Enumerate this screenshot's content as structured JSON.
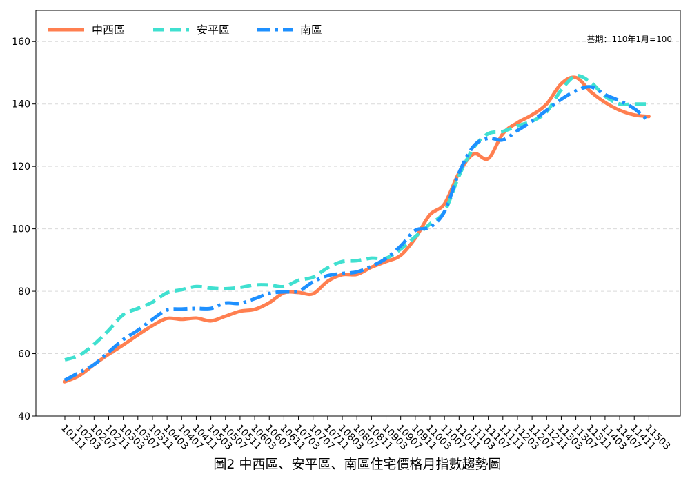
{
  "chart_data": {
    "type": "line",
    "title": "圖2  中西區、安平區、南區住宅價格月指數趨勢圖",
    "note": "基期：110年1月=100",
    "xlabel": "",
    "ylabel": "",
    "ylim": [
      40,
      170
    ],
    "yticks": [
      40,
      60,
      80,
      100,
      120,
      140,
      160
    ],
    "grid": "y-dashed",
    "legend": "top-left",
    "x_tick_labels": [
      "10111",
      "10203",
      "10207",
      "10211",
      "10303",
      "10307",
      "10311",
      "10403",
      "10407",
      "10411",
      "10503",
      "10507",
      "10511",
      "10603",
      "10607",
      "10611",
      "10703",
      "10707",
      "10711",
      "10803",
      "10807",
      "10811",
      "10903",
      "10907",
      "10911",
      "11003",
      "11007",
      "11011",
      "11103",
      "11107",
      "11111",
      "11203",
      "11207",
      "11211",
      "11303",
      "11307",
      "11311",
      "11403",
      "11407",
      "11411",
      "11503"
    ],
    "series": [
      {
        "name": "中西區",
        "color": "#FF7F50",
        "dash": "solid",
        "values": [
          51,
          53,
          56.5,
          59.8,
          62.8,
          66,
          69,
          71.3,
          71,
          71.4,
          70.5,
          72,
          73.6,
          74.2,
          76.3,
          79.5,
          79.6,
          79.2,
          83.2,
          85.3,
          85.4,
          87.7,
          89.5,
          91.5,
          97,
          104.5,
          108,
          118,
          124,
          122.5,
          130.5,
          134,
          136.5,
          140,
          146.5,
          148.5,
          144,
          140.5,
          138,
          136.5,
          136
        ]
      },
      {
        "name": "安平區",
        "color": "#40E0D0",
        "dash": "dashed",
        "values": [
          58,
          59.5,
          63,
          67.5,
          72.5,
          74.5,
          76.5,
          79.5,
          80.5,
          81.5,
          81,
          80.8,
          81.2,
          82,
          82,
          81.5,
          83.5,
          84.5,
          87.5,
          89.5,
          89.8,
          90.6,
          90.6,
          93.5,
          97.5,
          101.5,
          105.5,
          117,
          126,
          130.5,
          131.2,
          133,
          134.5,
          137.5,
          144.5,
          149,
          147,
          142.5,
          140,
          140,
          140
        ]
      },
      {
        "name": "南區",
        "color": "#1E90FF",
        "dash": "dashdot",
        "values": [
          51.5,
          54,
          56.5,
          60.5,
          64.5,
          67.5,
          71,
          74,
          74.3,
          74.5,
          74.5,
          76.2,
          76.1,
          77.6,
          79.3,
          79.8,
          80,
          83,
          85,
          85.7,
          86.2,
          88,
          90.5,
          94.5,
          99.5,
          100.5,
          105.5,
          118,
          126.5,
          129,
          128.5,
          131.5,
          134.5,
          138,
          141.5,
          144.2,
          145.5,
          143,
          141,
          138.5,
          134.5
        ]
      }
    ]
  }
}
